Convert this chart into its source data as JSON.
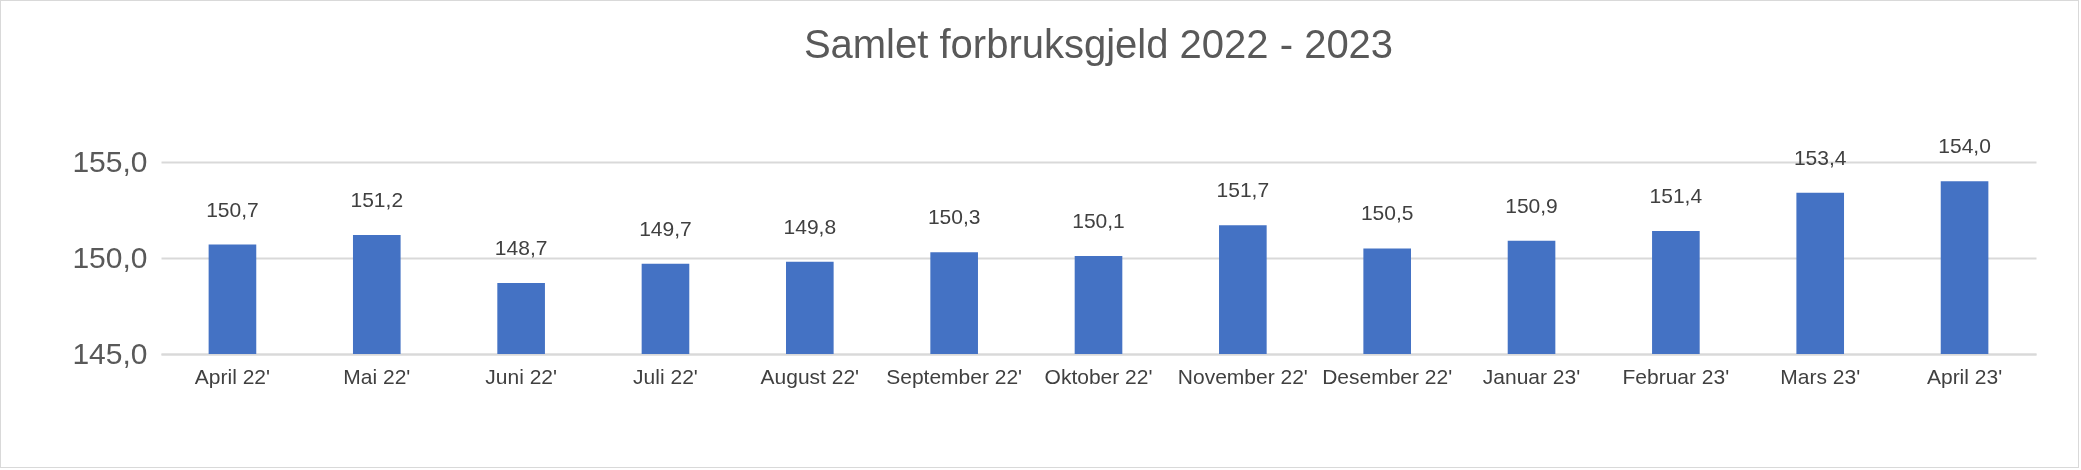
{
  "chart_data": {
    "type": "bar",
    "title": "Samlet forbruksgjeld 2022 - 2023",
    "categories": [
      "April 22'",
      "Mai 22'",
      "Juni 22'",
      "Juli 22'",
      "August 22'",
      "September 22'",
      "Oktober 22'",
      "November 22'",
      "Desember 22'",
      "Januar 23'",
      "Februar 23'",
      "Mars 23'",
      "April 23'"
    ],
    "values": [
      150.7,
      151.2,
      148.7,
      149.7,
      149.8,
      150.3,
      150.1,
      151.7,
      150.5,
      150.9,
      151.4,
      153.4,
      154.0
    ],
    "value_labels": [
      "150,7",
      "151,2",
      "148,7",
      "149,7",
      "149,8",
      "150,3",
      "150,1",
      "151,7",
      "150,5",
      "150,9",
      "151,4",
      "153,4",
      "154,0"
    ],
    "color": "#4472c4",
    "ylim": [
      145,
      155
    ],
    "yticks": [
      {
        "value": 145,
        "label": "145,0"
      },
      {
        "value": 150,
        "label": "150,0"
      },
      {
        "value": 155,
        "label": "155,0"
      }
    ],
    "grid": "y"
  }
}
